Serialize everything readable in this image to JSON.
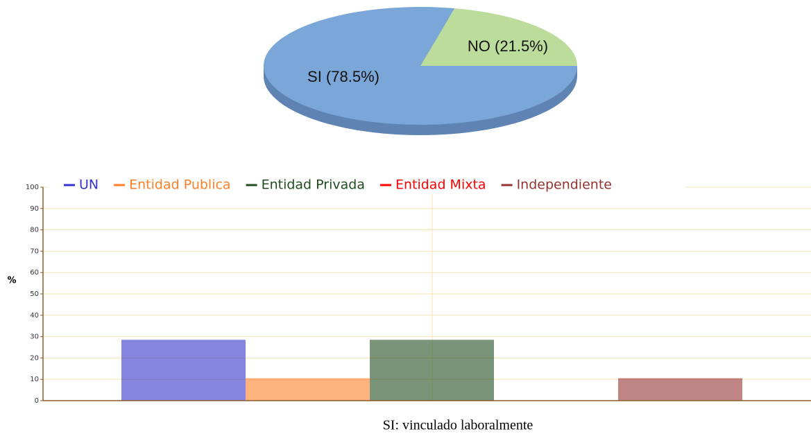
{
  "chart_data": [
    {
      "type": "pie",
      "categories": [
        "SI",
        "NO"
      ],
      "values": [
        78.5,
        21.5
      ],
      "value_labels": [
        "SI (78.5%)",
        "NO (21.5%)"
      ],
      "colors": [
        "#7ba6d8",
        "#bcdc9c"
      ]
    },
    {
      "type": "bar",
      "categories": [
        null
      ],
      "series": [
        {
          "name": "UN",
          "color": "#3333cc",
          "values": [
            28.5
          ]
        },
        {
          "name": "Entidad Publica",
          "color": "#ff7f27",
          "values": [
            10.5
          ]
        },
        {
          "name": "Entidad Privada",
          "color": "#1f4d1f",
          "values": [
            28.5
          ]
        },
        {
          "name": "Entidad Mixta",
          "color": "#ff0000",
          "values": [
            0
          ]
        },
        {
          "name": "Independiente",
          "color": "#943232",
          "values": [
            10.5
          ]
        }
      ],
      "ylabel": "%",
      "ylim": [
        0,
        100
      ],
      "yticks": [
        0,
        10,
        20,
        30,
        40,
        50,
        60,
        70,
        80,
        90,
        100
      ],
      "grid": true,
      "caption": "SI: vinculado laboralmente"
    }
  ]
}
